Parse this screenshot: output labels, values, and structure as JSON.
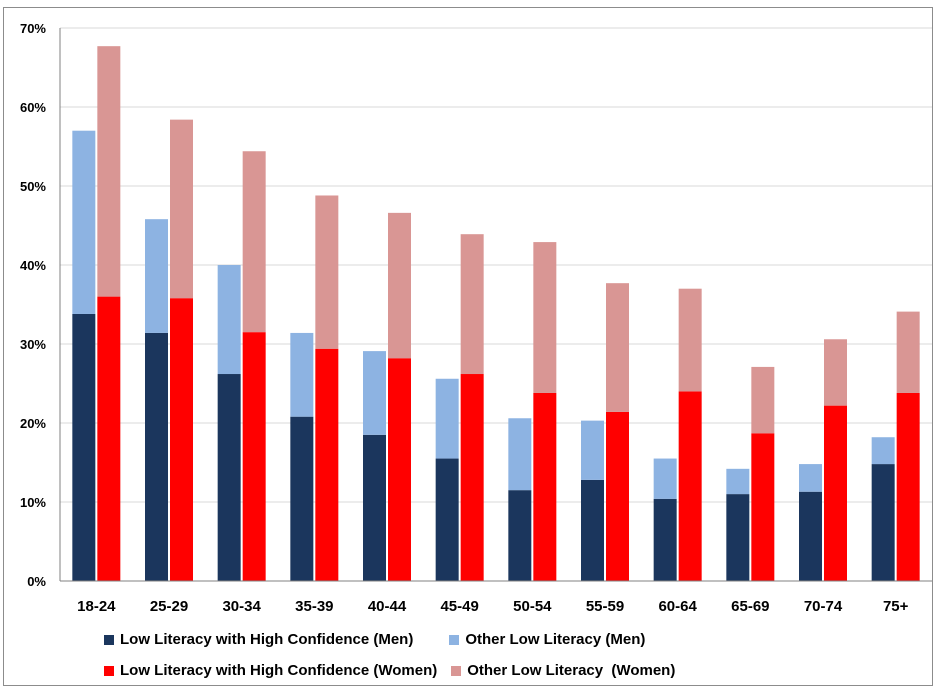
{
  "chart_data": {
    "type": "bar",
    "stacked": true,
    "grouped": true,
    "title": "",
    "xlabel": "",
    "ylabel": "",
    "ylim": [
      0,
      70
    ],
    "y_ticks": [
      "0%",
      "10%",
      "20%",
      "30%",
      "40%",
      "50%",
      "60%",
      "70%"
    ],
    "categories": [
      "18-24",
      "25-29",
      "30-34",
      "35-39",
      "40-44",
      "45-49",
      "50-54",
      "55-59",
      "60-64",
      "65-69",
      "70-74",
      "75+"
    ],
    "series": [
      {
        "name": "Low Literacy with High Confidence (Men)",
        "group": "men",
        "color": "#1b365d",
        "values": [
          33.8,
          31.4,
          26.2,
          20.8,
          18.5,
          15.5,
          11.5,
          12.8,
          10.4,
          11.0,
          11.3,
          14.8
        ]
      },
      {
        "name": "Other Low Literacy (Men)",
        "group": "men",
        "color": "#8db3e2",
        "values": [
          23.2,
          14.4,
          13.8,
          10.6,
          10.6,
          10.1,
          9.1,
          7.5,
          5.1,
          3.2,
          3.5,
          3.4
        ]
      },
      {
        "name": "Low Literacy with High Confidence (Women)",
        "group": "women",
        "color": "#ff0000",
        "values": [
          36.0,
          35.8,
          31.5,
          29.4,
          28.2,
          26.2,
          23.8,
          21.4,
          24.0,
          18.7,
          22.2,
          23.8
        ]
      },
      {
        "name": "Other Low Literacy  (Women)",
        "group": "women",
        "color": "#d99694",
        "values": [
          31.7,
          22.6,
          22.9,
          19.4,
          18.4,
          17.7,
          19.1,
          16.3,
          13.0,
          8.4,
          8.4,
          10.3
        ]
      }
    ],
    "grid": true,
    "legend_position": "bottom"
  }
}
